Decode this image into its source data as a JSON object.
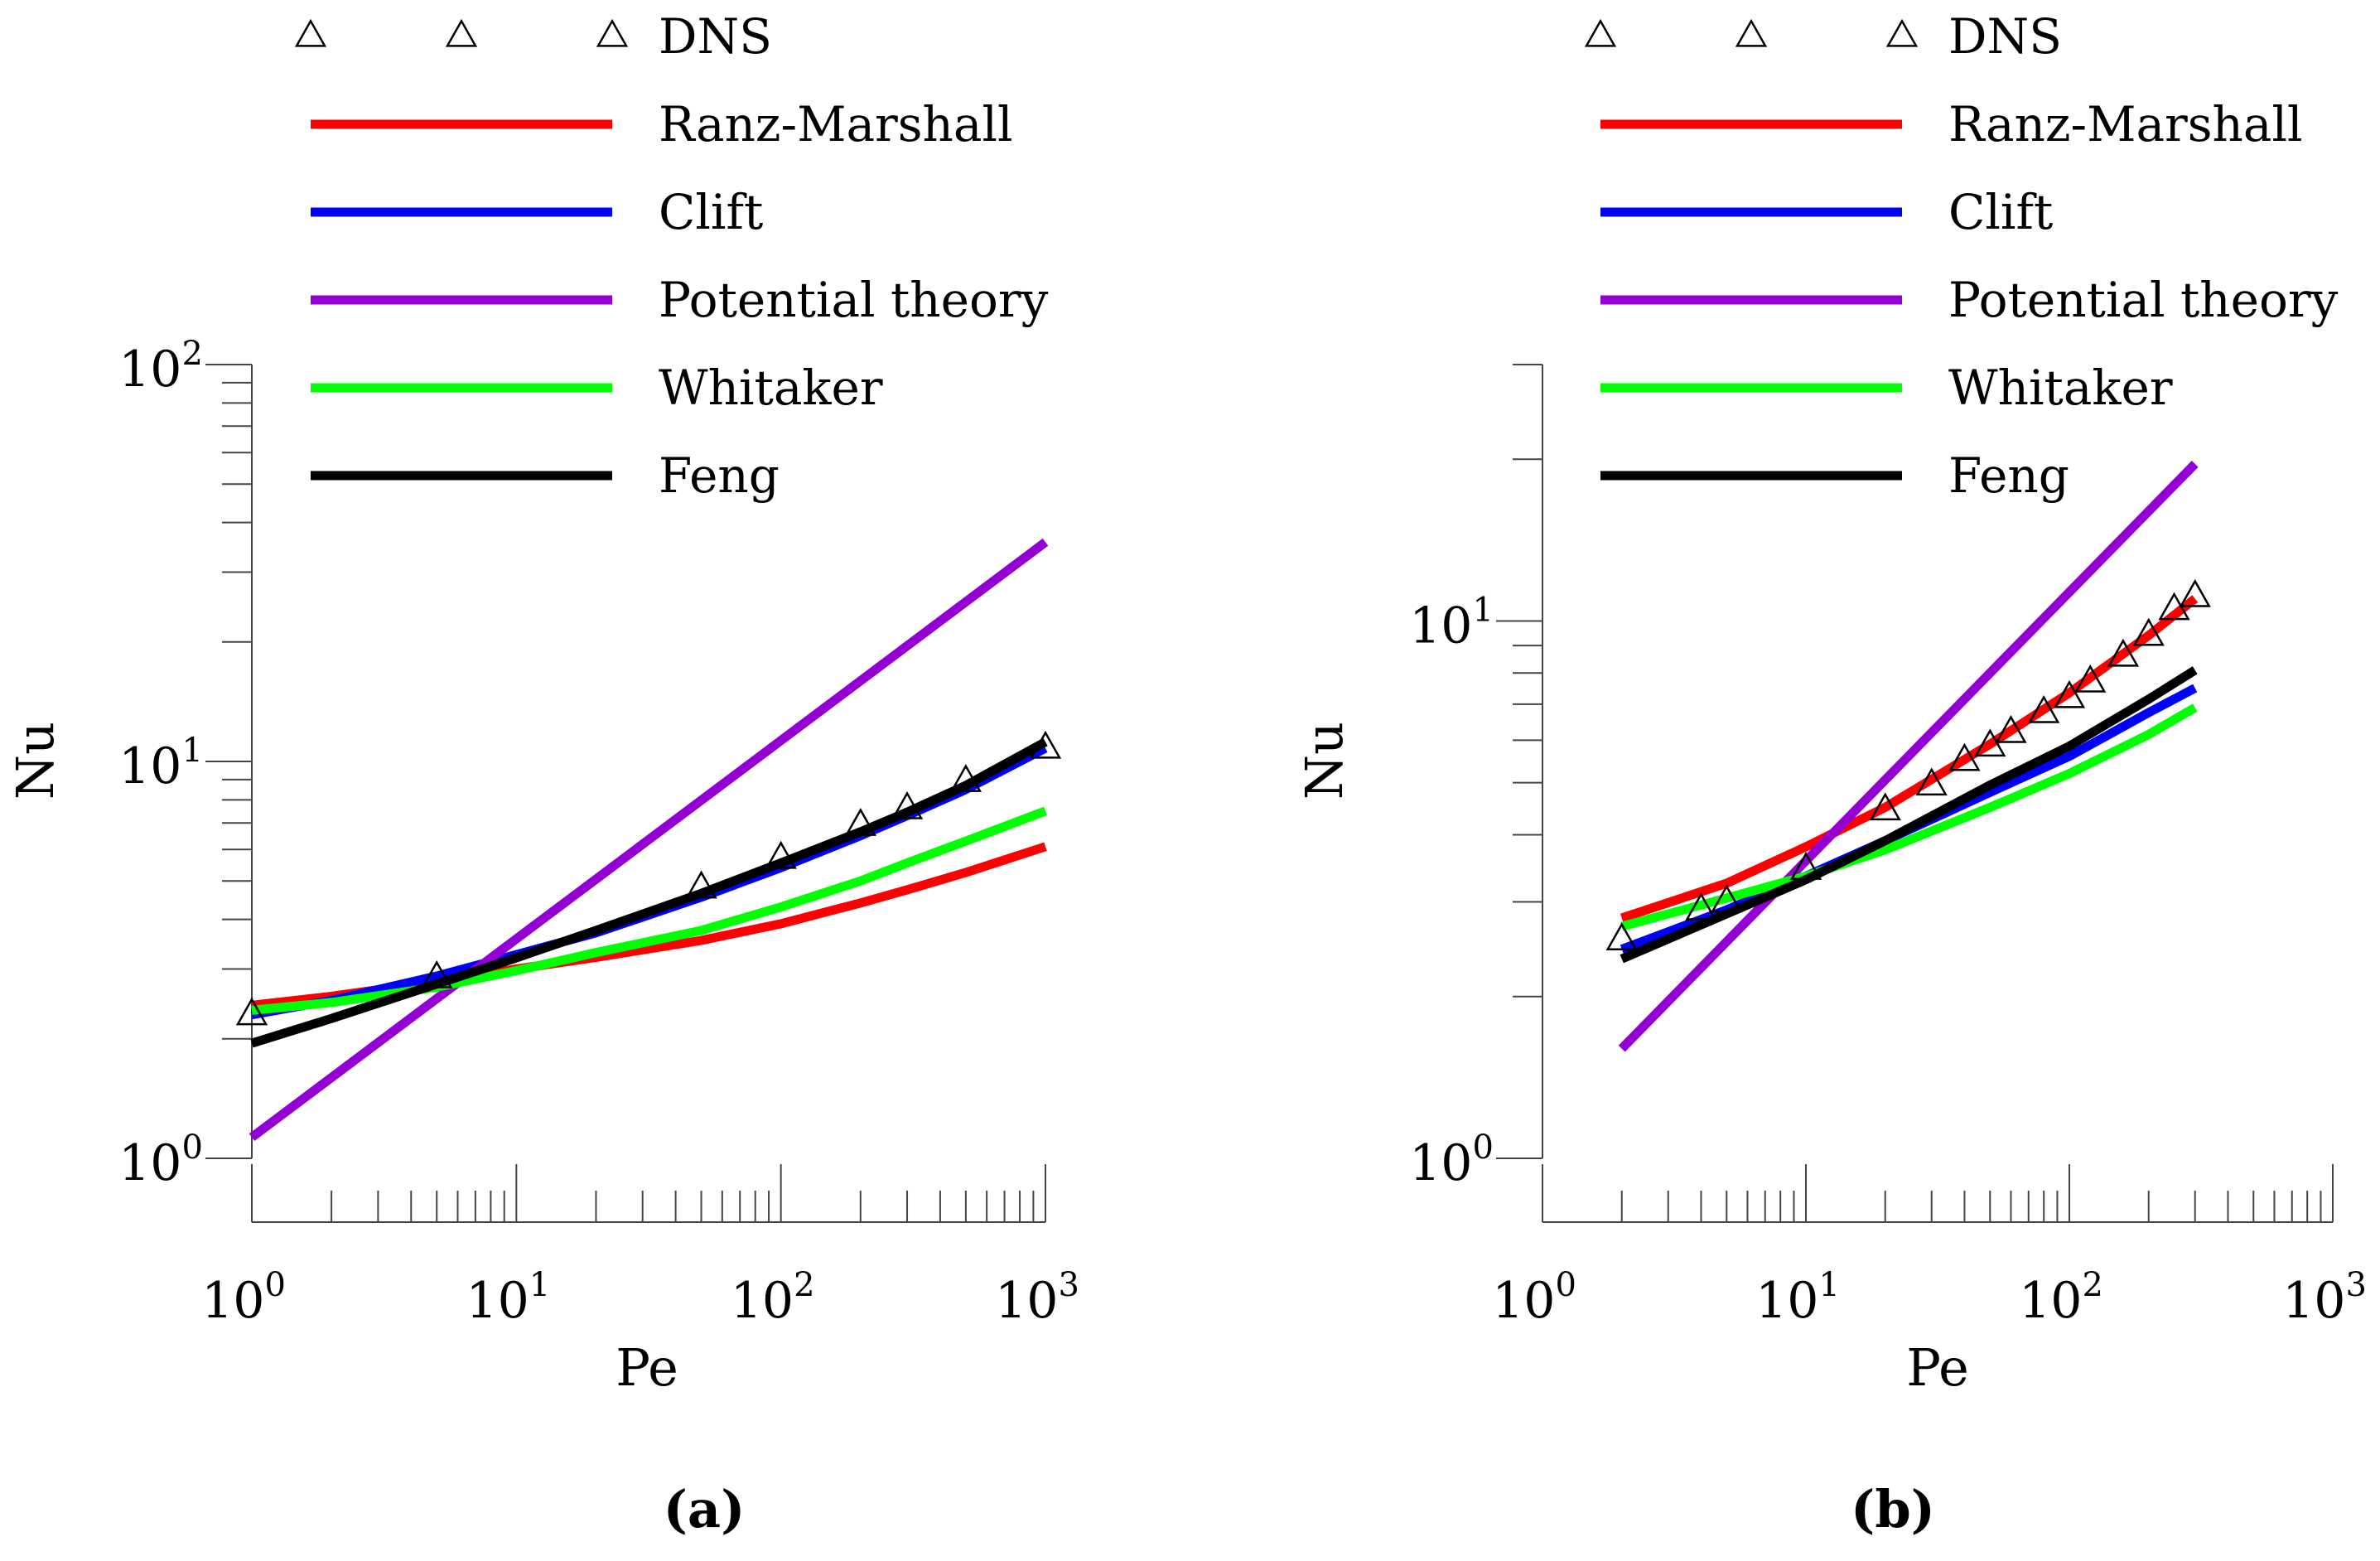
{
  "legend_colors": {
    "Ranz-Marshall": "#ff0000",
    "Clift": "#0000ff",
    "Potential theory": "#9400d3",
    "Whitaker": "#00ff00",
    "Feng": "#000000"
  },
  "chart_data": [
    {
      "type": "line",
      "panel_label": "(a)",
      "xlabel": "Pe",
      "ylabel": "Nu",
      "xscale": "log",
      "yscale": "log",
      "xlim": [
        1,
        1000
      ],
      "ylim": [
        1,
        100
      ],
      "xticks": [
        {
          "base": "10",
          "exp": "0"
        },
        {
          "base": "10",
          "exp": "1"
        },
        {
          "base": "10",
          "exp": "2"
        },
        {
          "base": "10",
          "exp": "3"
        }
      ],
      "yticks": [
        {
          "base": "10",
          "exp": "0"
        },
        {
          "base": "10",
          "exp": "1"
        },
        {
          "base": "10",
          "exp": "2"
        }
      ],
      "legend": [
        "DNS",
        "Ranz-Marshall",
        "Clift",
        "Potential theory",
        "Whitaker",
        "Feng"
      ],
      "dns": {
        "name": "DNS",
        "x": [
          1,
          5,
          50,
          100,
          200,
          300,
          500,
          1000
        ],
        "y": [
          2.3,
          2.85,
          4.8,
          5.7,
          6.9,
          7.6,
          8.9,
          10.8
        ]
      },
      "series": [
        {
          "name": "Ranz-Marshall",
          "x": [
            1,
            2,
            5,
            10,
            20,
            50,
            100,
            200,
            300,
            500,
            1000
          ],
          "y": [
            2.43,
            2.56,
            2.79,
            3.0,
            3.21,
            3.54,
            3.9,
            4.4,
            4.75,
            5.25,
            6.1
          ]
        },
        {
          "name": "Clift",
          "x": [
            1,
            2,
            5,
            10,
            20,
            50,
            100,
            200,
            300,
            500,
            1000
          ],
          "y": [
            2.3,
            2.5,
            2.88,
            3.26,
            3.7,
            4.55,
            5.4,
            6.5,
            7.3,
            8.5,
            10.8
          ]
        },
        {
          "name": "Potential theory",
          "x": [
            1,
            1000
          ],
          "y": [
            1.13,
            35.7
          ]
        },
        {
          "name": "Whitaker",
          "x": [
            1,
            2,
            5,
            10,
            20,
            50,
            100,
            200,
            300,
            500,
            1000
          ],
          "y": [
            2.36,
            2.47,
            2.7,
            2.97,
            3.3,
            3.75,
            4.3,
            5.0,
            5.55,
            6.3,
            7.5
          ]
        },
        {
          "name": "Feng",
          "x": [
            1,
            2,
            5,
            10,
            20,
            50,
            100,
            200,
            300,
            500,
            1000
          ],
          "y": [
            1.95,
            2.25,
            2.75,
            3.2,
            3.75,
            4.65,
            5.55,
            6.65,
            7.45,
            8.7,
            11.2
          ]
        }
      ]
    },
    {
      "type": "line",
      "panel_label": "(b)",
      "xlabel": "Pe",
      "ylabel": "Nu",
      "xscale": "log",
      "yscale": "log",
      "xlim": [
        1,
        1000
      ],
      "ylim": [
        1,
        30
      ],
      "xticks": [
        {
          "base": "10",
          "exp": "0"
        },
        {
          "base": "10",
          "exp": "1"
        },
        {
          "base": "10",
          "exp": "2"
        },
        {
          "base": "10",
          "exp": "3"
        }
      ],
      "yticks": [
        {
          "base": "10",
          "exp": "0"
        },
        {
          "base": "10",
          "exp": "1"
        }
      ],
      "legend": [
        "DNS",
        "Ranz-Marshall",
        "Clift",
        "Potential theory",
        "Whitaker",
        "Feng"
      ],
      "dns": {
        "name": "DNS",
        "x": [
          2,
          4,
          5,
          10,
          20,
          30,
          40,
          50,
          60,
          80,
          100,
          120,
          160,
          200,
          250,
          300
        ],
        "y": [
          2.55,
          2.9,
          3.0,
          3.45,
          4.45,
          4.95,
          5.5,
          5.85,
          6.2,
          6.75,
          7.2,
          7.7,
          8.6,
          9.4,
          10.5,
          11.1
        ]
      },
      "series": [
        {
          "name": "Ranz-Marshall",
          "x": [
            2,
            5,
            10,
            20,
            50,
            100,
            200,
            300
          ],
          "y": [
            2.8,
            3.25,
            3.8,
            4.5,
            5.9,
            7.35,
            9.4,
            11.0
          ]
        },
        {
          "name": "Clift",
          "x": [
            2,
            5,
            10,
            20,
            50,
            100,
            200,
            300
          ],
          "y": [
            2.45,
            2.9,
            3.35,
            3.9,
            4.8,
            5.6,
            6.75,
            7.5
          ]
        },
        {
          "name": "Potential theory",
          "x": [
            2,
            300
          ],
          "y": [
            1.6,
            19.6
          ]
        },
        {
          "name": "Whitaker",
          "x": [
            2,
            5,
            10,
            20,
            50,
            100,
            200,
            300
          ],
          "y": [
            2.7,
            3.05,
            3.35,
            3.75,
            4.5,
            5.2,
            6.15,
            6.9
          ]
        },
        {
          "name": "Feng",
          "x": [
            2,
            5,
            10,
            20,
            50,
            100,
            200,
            300
          ],
          "y": [
            2.35,
            2.85,
            3.3,
            3.9,
            4.95,
            5.85,
            7.15,
            8.1
          ]
        }
      ]
    }
  ]
}
